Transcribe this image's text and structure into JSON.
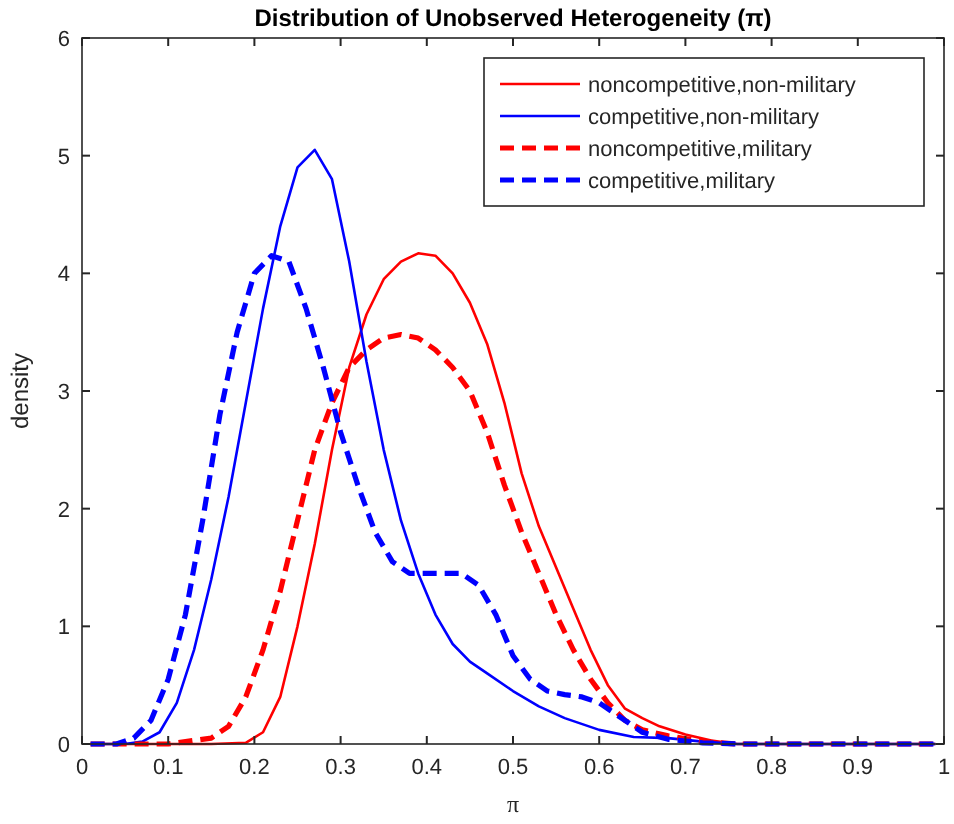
{
  "chart_data": {
    "type": "line",
    "title": "Distribution of Unobserved Heterogeneity (π)",
    "xlabel": "π",
    "ylabel": "density",
    "xlim": [
      0,
      1
    ],
    "xticks": [
      0,
      0.1,
      0.2,
      0.3,
      0.4,
      0.5,
      0.6,
      0.7,
      0.8,
      0.9,
      1
    ],
    "ylim": [
      0,
      6
    ],
    "yticks": [
      0,
      1,
      2,
      3,
      4,
      5,
      6
    ],
    "legend": "top right",
    "grid": false,
    "series": [
      {
        "name": "noncompetitive,non-military",
        "color": "#ff0000",
        "line_style": "solid",
        "x": [
          0.01,
          0.15,
          0.19,
          0.21,
          0.23,
          0.25,
          0.27,
          0.29,
          0.31,
          0.33,
          0.35,
          0.37,
          0.39,
          0.41,
          0.43,
          0.45,
          0.47,
          0.49,
          0.51,
          0.53,
          0.55,
          0.57,
          0.59,
          0.61,
          0.63,
          0.65,
          0.67,
          0.7,
          0.73,
          0.76,
          0.99
        ],
        "values": [
          0,
          0,
          0.01,
          0.1,
          0.4,
          1.0,
          1.7,
          2.5,
          3.2,
          3.65,
          3.95,
          4.1,
          4.17,
          4.15,
          4.0,
          3.75,
          3.4,
          2.9,
          2.3,
          1.85,
          1.5,
          1.15,
          0.8,
          0.5,
          0.3,
          0.22,
          0.15,
          0.08,
          0.03,
          0,
          0
        ]
      },
      {
        "name": "competitive,non-military",
        "color": "#0000ff",
        "line_style": "solid",
        "x": [
          0.01,
          0.05,
          0.07,
          0.09,
          0.11,
          0.13,
          0.15,
          0.17,
          0.19,
          0.21,
          0.23,
          0.25,
          0.27,
          0.29,
          0.31,
          0.33,
          0.35,
          0.37,
          0.39,
          0.41,
          0.43,
          0.45,
          0.47,
          0.5,
          0.53,
          0.56,
          0.6,
          0.64,
          0.68,
          0.72,
          0.76,
          0.99
        ],
        "values": [
          0,
          0,
          0.02,
          0.1,
          0.35,
          0.8,
          1.4,
          2.1,
          2.9,
          3.7,
          4.4,
          4.9,
          5.05,
          4.8,
          4.1,
          3.25,
          2.5,
          1.9,
          1.45,
          1.1,
          0.85,
          0.7,
          0.6,
          0.45,
          0.32,
          0.22,
          0.12,
          0.06,
          0.05,
          0.02,
          0,
          0
        ]
      },
      {
        "name": "noncompetitive,military",
        "color": "#ff0000",
        "line_style": "dashed",
        "x": [
          0.01,
          0.1,
          0.13,
          0.15,
          0.17,
          0.19,
          0.21,
          0.23,
          0.25,
          0.27,
          0.29,
          0.31,
          0.33,
          0.35,
          0.37,
          0.39,
          0.41,
          0.43,
          0.45,
          0.47,
          0.49,
          0.51,
          0.53,
          0.55,
          0.57,
          0.59,
          0.61,
          0.63,
          0.65,
          0.68,
          0.72,
          0.76,
          0.99
        ],
        "values": [
          0,
          0,
          0.03,
          0.05,
          0.15,
          0.4,
          0.8,
          1.3,
          1.9,
          2.5,
          2.9,
          3.2,
          3.35,
          3.45,
          3.48,
          3.45,
          3.35,
          3.2,
          3.0,
          2.65,
          2.2,
          1.8,
          1.45,
          1.1,
          0.8,
          0.55,
          0.35,
          0.2,
          0.12,
          0.07,
          0.02,
          0,
          0
        ]
      },
      {
        "name": "competitive,military",
        "color": "#0000ff",
        "line_style": "dashed",
        "x": [
          0.01,
          0.04,
          0.06,
          0.08,
          0.1,
          0.12,
          0.14,
          0.16,
          0.18,
          0.2,
          0.22,
          0.24,
          0.26,
          0.28,
          0.3,
          0.32,
          0.34,
          0.36,
          0.38,
          0.4,
          0.42,
          0.44,
          0.46,
          0.48,
          0.5,
          0.52,
          0.54,
          0.56,
          0.58,
          0.6,
          0.62,
          0.65,
          0.68,
          0.72,
          0.76,
          0.99
        ],
        "values": [
          0,
          0,
          0.05,
          0.2,
          0.55,
          1.1,
          1.9,
          2.8,
          3.5,
          4.0,
          4.15,
          4.1,
          3.7,
          3.2,
          2.65,
          2.2,
          1.8,
          1.55,
          1.45,
          1.45,
          1.45,
          1.45,
          1.35,
          1.1,
          0.75,
          0.55,
          0.45,
          0.42,
          0.4,
          0.35,
          0.25,
          0.1,
          0.04,
          0.01,
          0,
          0
        ]
      }
    ]
  }
}
